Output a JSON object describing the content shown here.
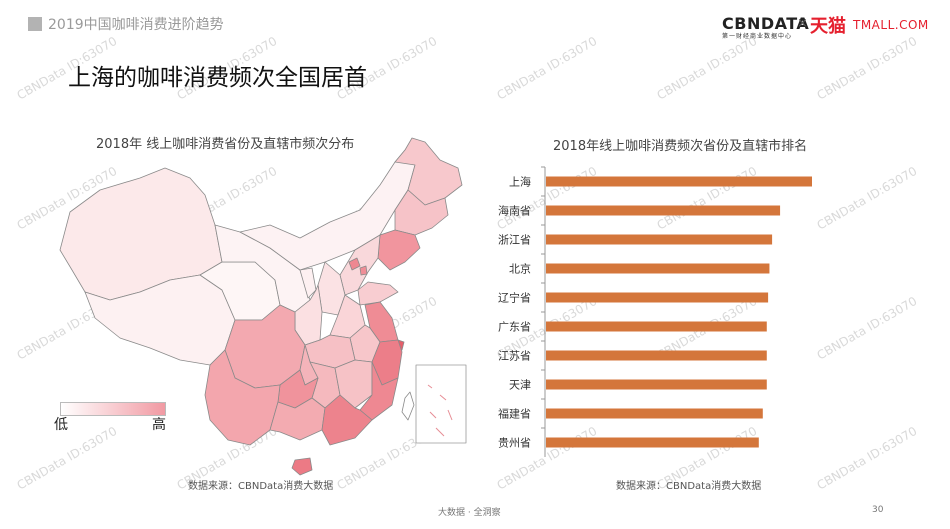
{
  "header": {
    "section_label": "2019中国咖啡消费进阶趋势"
  },
  "logo": {
    "cbn": "CBNDATA",
    "cbn_sub": "第一财经商业数据中心",
    "times": "×",
    "tmall_cn": "天猫",
    "tmall_en": "TMALL.COM"
  },
  "main_title": "上海的咖啡消费频次全国居首",
  "map": {
    "title": "2018年 线上咖啡消费省份及直辖市频次分布",
    "legend_low": "低",
    "legend_high": "高",
    "source": "数据来源：CBNData消费大数据"
  },
  "chart_data": {
    "type": "bar",
    "orientation": "horizontal",
    "title": "2018年线上咖啡消费频次省份及直辖市排名",
    "categories": [
      "上海",
      "海南省",
      "浙江省",
      "北京",
      "辽宁省",
      "广东省",
      "江苏省",
      "天津",
      "福建省",
      "贵州省"
    ],
    "values": [
      100,
      88,
      85,
      84,
      83.5,
      83,
      83,
      83,
      81.5,
      80
    ],
    "bar_color": "#d4763b",
    "grid": false,
    "source": "数据来源：CBNData消费大数据"
  },
  "watermark": "CBNData ID:63070",
  "footer": {
    "text": "大数据 · 全洞察",
    "page": "30"
  }
}
